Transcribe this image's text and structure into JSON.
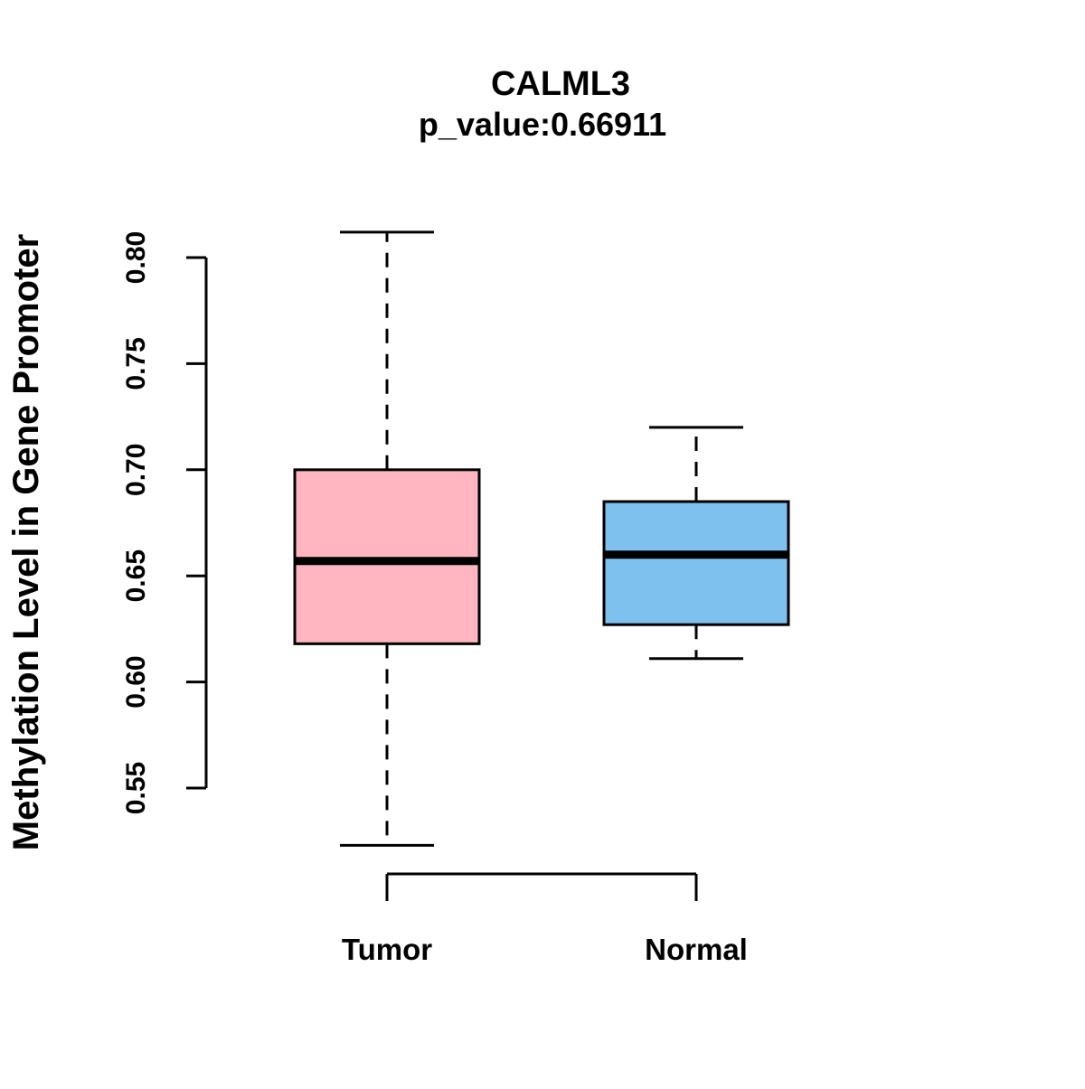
{
  "chart_data": {
    "type": "boxplot",
    "title": "CALML3",
    "subtitle": "p_value:0.66911",
    "ylabel": "Methylation Level in Gene Promoter",
    "xlabel": "",
    "categories": [
      "Tumor",
      "Normal"
    ],
    "yticks": [
      {
        "value": 0.55,
        "label": "0.55"
      },
      {
        "value": 0.6,
        "label": "0.60"
      },
      {
        "value": 0.65,
        "label": "0.65"
      },
      {
        "value": 0.7,
        "label": "0.70"
      },
      {
        "value": 0.75,
        "label": "0.75"
      },
      {
        "value": 0.8,
        "label": "0.80"
      }
    ],
    "ylim": [
      0.52,
      0.815
    ],
    "grid": false,
    "legend": "none",
    "series": [
      {
        "name": "Tumor",
        "color": "#FFB6C1",
        "lower_whisker": 0.523,
        "q1": 0.618,
        "median": 0.657,
        "q3": 0.7,
        "upper_whisker": 0.812
      },
      {
        "name": "Normal",
        "color": "#7EC0EE",
        "lower_whisker": 0.611,
        "q1": 0.627,
        "median": 0.66,
        "q3": 0.685,
        "upper_whisker": 0.72
      }
    ]
  },
  "colors": {
    "axis": "#000000",
    "background": "#FFFFFF"
  }
}
